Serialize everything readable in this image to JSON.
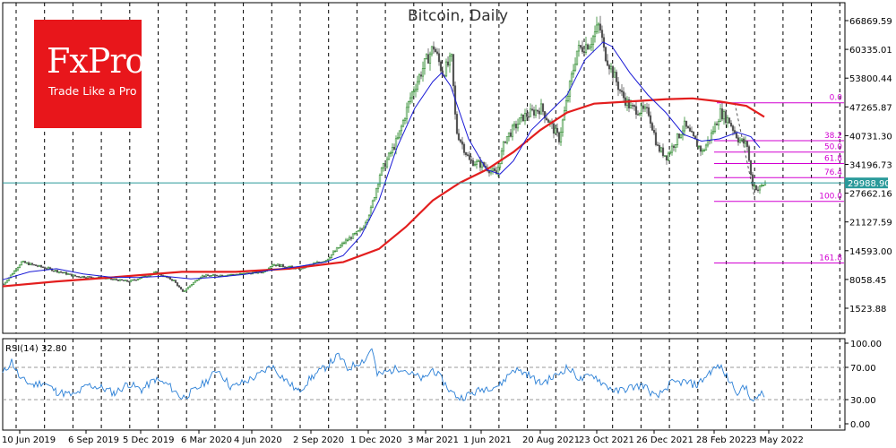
{
  "chart_title": "Bitcoin, Daily",
  "logo": {
    "brand": "FxPro",
    "tagline": "Trade Like a Pro"
  },
  "colors": {
    "price_ma_red": "#e31e1e",
    "price_ma_blue": "#1a1ad6",
    "rsi_line": "#2a7fd6",
    "fib": "#d200d2",
    "current_line": "#2a9a9a",
    "bull": "#2e8b2e",
    "bear": "#555555"
  },
  "chart_data": {
    "type": "candlestick",
    "title": "Bitcoin, Daily",
    "y_ticks": [
      "66869.59",
      "60335.01",
      "53800.44",
      "47265.87",
      "40731.30",
      "34196.73",
      "27662.16",
      "21127.59",
      "14593.00",
      "8058.45",
      "1523.88"
    ],
    "x_ticks": [
      "10 Jun 2019",
      "6 Sep 2019",
      "5 Dec 2019",
      "6 Mar 2020",
      "4 Jun 2020",
      "2 Sep 2020",
      "1 Dec 2020",
      "3 Mar 2021",
      "1 Jun 2021",
      "20 Aug 2021",
      "23 Oct 2021",
      "26 Dec 2021",
      "28 Feb 2022",
      "3 May 2022"
    ],
    "current_price": "29988.90",
    "fib_levels": [
      {
        "label": "0.0",
        "value": 48200
      },
      {
        "label": "38.2",
        "value": 39600
      },
      {
        "label": "50.0",
        "value": 37000
      },
      {
        "label": "61.8",
        "value": 34400
      },
      {
        "label": "76.4",
        "value": 31200
      },
      {
        "label": "100.0",
        "value": 25800
      },
      {
        "label": "161.8",
        "value": 11800
      }
    ],
    "price_path": [
      [
        0,
        7000
      ],
      [
        20,
        12000
      ],
      [
        50,
        10500
      ],
      [
        80,
        8800
      ],
      [
        110,
        8400
      ],
      [
        140,
        7600
      ],
      [
        170,
        9600
      ],
      [
        190,
        7800
      ],
      [
        200,
        5200
      ],
      [
        220,
        8800
      ],
      [
        260,
        9200
      ],
      [
        290,
        9800
      ],
      [
        300,
        11500
      ],
      [
        330,
        10500
      ],
      [
        360,
        12500
      ],
      [
        380,
        16500
      ],
      [
        400,
        19500
      ],
      [
        410,
        24000
      ],
      [
        420,
        32000
      ],
      [
        440,
        40000
      ],
      [
        455,
        50000
      ],
      [
        470,
        57000
      ],
      [
        480,
        61000
      ],
      [
        490,
        55000
      ],
      [
        500,
        58000
      ],
      [
        505,
        42000
      ],
      [
        520,
        35000
      ],
      [
        535,
        34000
      ],
      [
        550,
        32000
      ],
      [
        560,
        40000
      ],
      [
        580,
        45000
      ],
      [
        600,
        47000
      ],
      [
        620,
        40000
      ],
      [
        630,
        50000
      ],
      [
        640,
        60000
      ],
      [
        655,
        62000
      ],
      [
        665,
        66000
      ],
      [
        670,
        60000
      ],
      [
        680,
        55000
      ],
      [
        690,
        50000
      ],
      [
        700,
        47000
      ],
      [
        720,
        46000
      ],
      [
        730,
        38000
      ],
      [
        740,
        36000
      ],
      [
        760,
        43000
      ],
      [
        770,
        40000
      ],
      [
        780,
        37000
      ],
      [
        790,
        41000
      ],
      [
        800,
        46000
      ],
      [
        810,
        44000
      ],
      [
        820,
        40000
      ],
      [
        830,
        38500
      ],
      [
        835,
        30000
      ],
      [
        842,
        28500
      ],
      [
        850,
        30000
      ]
    ],
    "ma_blue": [
      [
        0,
        8000
      ],
      [
        30,
        9800
      ],
      [
        60,
        10500
      ],
      [
        90,
        9300
      ],
      [
        120,
        8600
      ],
      [
        150,
        8500
      ],
      [
        180,
        8800
      ],
      [
        210,
        8200
      ],
      [
        240,
        8600
      ],
      [
        270,
        9200
      ],
      [
        300,
        10200
      ],
      [
        330,
        11000
      ],
      [
        360,
        12000
      ],
      [
        380,
        13500
      ],
      [
        400,
        18000
      ],
      [
        420,
        26000
      ],
      [
        440,
        38000
      ],
      [
        460,
        47000
      ],
      [
        480,
        53000
      ],
      [
        490,
        55000
      ],
      [
        500,
        52000
      ],
      [
        520,
        40000
      ],
      [
        540,
        33000
      ],
      [
        555,
        32000
      ],
      [
        570,
        35000
      ],
      [
        590,
        42000
      ],
      [
        610,
        46000
      ],
      [
        630,
        50000
      ],
      [
        650,
        58000
      ],
      [
        670,
        62000
      ],
      [
        680,
        61000
      ],
      [
        700,
        55000
      ],
      [
        720,
        50000
      ],
      [
        740,
        46000
      ],
      [
        760,
        41000
      ],
      [
        780,
        39500
      ],
      [
        800,
        40000
      ],
      [
        820,
        41500
      ],
      [
        835,
        40500
      ],
      [
        845,
        38000
      ]
    ],
    "ma_red": [
      [
        0,
        6500
      ],
      [
        60,
        7600
      ],
      [
        120,
        8500
      ],
      [
        200,
        9800
      ],
      [
        260,
        9800
      ],
      [
        320,
        10500
      ],
      [
        380,
        12000
      ],
      [
        420,
        15000
      ],
      [
        450,
        20000
      ],
      [
        480,
        26000
      ],
      [
        510,
        30000
      ],
      [
        540,
        33000
      ],
      [
        570,
        37000
      ],
      [
        600,
        42000
      ],
      [
        630,
        46000
      ],
      [
        660,
        48000
      ],
      [
        700,
        48500
      ],
      [
        740,
        49000
      ],
      [
        770,
        49200
      ],
      [
        800,
        48500
      ],
      [
        830,
        47500
      ],
      [
        850,
        45000
      ]
    ],
    "rsi": {
      "label": "RSI(14) 32.80",
      "y_ticks": [
        "100.00",
        "70.00",
        "30.00",
        "0.00"
      ],
      "levels": [
        70,
        30
      ],
      "path": [
        [
          0,
          62
        ],
        [
          10,
          78
        ],
        [
          20,
          55
        ],
        [
          35,
          48
        ],
        [
          45,
          52
        ],
        [
          60,
          40
        ],
        [
          80,
          35
        ],
        [
          95,
          48
        ],
        [
          110,
          45
        ],
        [
          125,
          38
        ],
        [
          140,
          50
        ],
        [
          155,
          42
        ],
        [
          170,
          55
        ],
        [
          185,
          48
        ],
        [
          200,
          32
        ],
        [
          215,
          42
        ],
        [
          230,
          55
        ],
        [
          240,
          68
        ],
        [
          255,
          45
        ],
        [
          270,
          52
        ],
        [
          285,
          60
        ],
        [
          300,
          72
        ],
        [
          315,
          55
        ],
        [
          330,
          40
        ],
        [
          345,
          58
        ],
        [
          360,
          70
        ],
        [
          375,
          85
        ],
        [
          385,
          68
        ],
        [
          395,
          75
        ],
        [
          405,
          80
        ],
        [
          412,
          95
        ],
        [
          418,
          60
        ],
        [
          430,
          65
        ],
        [
          445,
          70
        ],
        [
          455,
          62
        ],
        [
          470,
          55
        ],
        [
          480,
          68
        ],
        [
          490,
          55
        ],
        [
          500,
          40
        ],
        [
          510,
          32
        ],
        [
          525,
          38
        ],
        [
          540,
          45
        ],
        [
          555,
          48
        ],
        [
          570,
          68
        ],
        [
          585,
          62
        ],
        [
          600,
          50
        ],
        [
          615,
          58
        ],
        [
          630,
          70
        ],
        [
          645,
          55
        ],
        [
          660,
          60
        ],
        [
          670,
          50
        ],
        [
          685,
          40
        ],
        [
          700,
          45
        ],
        [
          715,
          48
        ],
        [
          730,
          32
        ],
        [
          745,
          50
        ],
        [
          760,
          52
        ],
        [
          775,
          48
        ],
        [
          790,
          65
        ],
        [
          800,
          72
        ],
        [
          810,
          55
        ],
        [
          820,
          40
        ],
        [
          830,
          45
        ],
        [
          838,
          25
        ],
        [
          845,
          38
        ],
        [
          850,
          33
        ]
      ]
    }
  }
}
